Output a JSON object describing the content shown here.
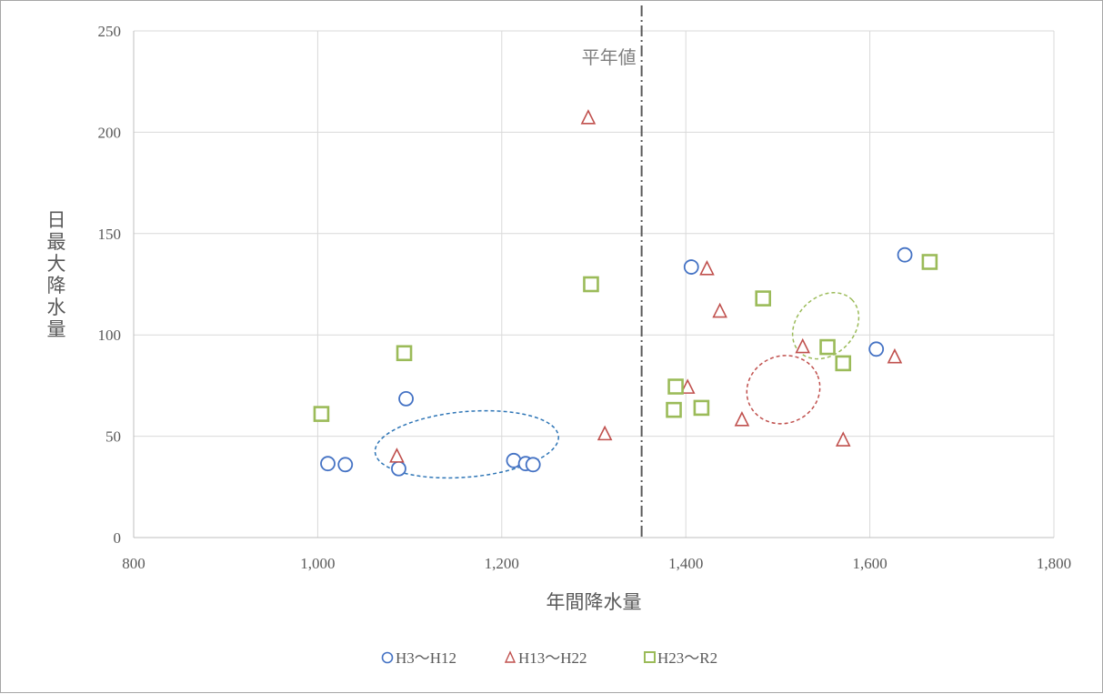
{
  "chart_data": {
    "type": "scatter",
    "title": "",
    "xlabel": "年間降水量",
    "ylabel": "日最大降水量",
    "xlim": [
      800,
      1800
    ],
    "ylim": [
      0,
      250
    ],
    "x_ticks": [
      800,
      1000,
      1200,
      1400,
      1600,
      1800
    ],
    "x_tick_labels": [
      "800",
      "1,000",
      "1,200",
      "1,400",
      "1,600",
      "1,800"
    ],
    "y_ticks": [
      0,
      50,
      100,
      150,
      200,
      250
    ],
    "y_tick_labels": [
      "0",
      "50",
      "100",
      "150",
      "200",
      "250"
    ],
    "grid": true,
    "legend_position": "bottom",
    "reference_line": {
      "x": 1352,
      "label": "平年値"
    },
    "series": [
      {
        "name": "H3〜H12",
        "marker": "circle",
        "color": "#4472c4",
        "points": [
          [
            1011,
            36.5
          ],
          [
            1030,
            36
          ],
          [
            1088,
            34
          ],
          [
            1096,
            68.5
          ],
          [
            1213,
            38
          ],
          [
            1226,
            36.5
          ],
          [
            1234,
            36
          ],
          [
            1406,
            133.5
          ],
          [
            1607,
            93
          ],
          [
            1638,
            139.5
          ]
        ]
      },
      {
        "name": "H13〜H22",
        "marker": "triangle",
        "color": "#c0504d",
        "points": [
          [
            1086,
            40
          ],
          [
            1294,
            207
          ],
          [
            1312,
            51
          ],
          [
            1402,
            74
          ],
          [
            1423,
            132.5
          ],
          [
            1437,
            111.5
          ],
          [
            1461,
            58
          ],
          [
            1527,
            94
          ],
          [
            1571,
            48
          ],
          [
            1627,
            89
          ]
        ]
      },
      {
        "name": "H23〜R2",
        "marker": "square",
        "color": "#9bbb59",
        "points": [
          [
            1004,
            61
          ],
          [
            1094,
            91
          ],
          [
            1297,
            125
          ],
          [
            1387,
            63
          ],
          [
            1389,
            74.5
          ],
          [
            1417,
            64
          ],
          [
            1484,
            118
          ],
          [
            1554,
            94
          ],
          [
            1571,
            86
          ],
          [
            1665,
            136
          ]
        ]
      }
    ],
    "ellipses": [
      {
        "series": "H3〜H12",
        "color": "#2e75b6",
        "center": [
          1162,
          46
        ],
        "rx": 46,
        "ry": 8,
        "angle": 5
      },
      {
        "series": "H13〜H22",
        "color": "#c0504d",
        "center": [
          1506,
          73
        ],
        "rx": 18.5,
        "ry": 8.2,
        "angle": 22
      },
      {
        "series": "H23〜R2",
        "color": "#9bbb59",
        "center": [
          1552,
          104.5
        ],
        "rx": 18.5,
        "ry": 7,
        "angle": 45
      }
    ]
  }
}
